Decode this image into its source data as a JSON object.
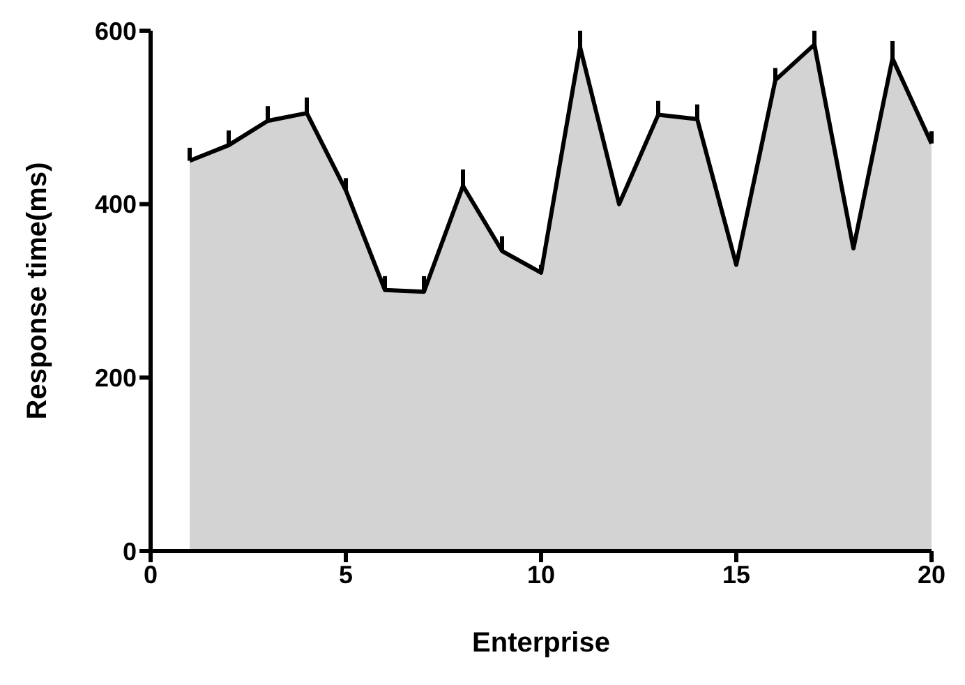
{
  "chart_data": {
    "type": "area",
    "xlabel": "Enterprise",
    "ylabel": "Response time(ms)",
    "x": [
      1,
      2,
      3,
      4,
      5,
      6,
      7,
      8,
      9,
      10,
      11,
      12,
      13,
      14,
      15,
      16,
      17,
      18,
      19,
      20
    ],
    "series": [
      {
        "color": "#d3d3d3",
        "values": [
          450,
          468,
          496,
          505,
          416,
          301,
          299,
          421,
          346,
          321,
          581,
          400,
          503,
          498,
          330,
          543,
          584,
          349,
          568,
          470
        ],
        "errors": [
          [
            450,
            465
          ],
          [
            468,
            485
          ],
          [
            496,
            513
          ],
          [
            505,
            523
          ],
          [
            416,
            430
          ],
          [
            301,
            317
          ],
          [
            299,
            317
          ],
          [
            421,
            440
          ],
          [
            346,
            363
          ],
          [
            321,
            330
          ],
          [
            581,
            600
          ],
          null,
          [
            503,
            519
          ],
          [
            498,
            515
          ],
          null,
          [
            543,
            557
          ],
          [
            584,
            600
          ],
          null,
          [
            568,
            588
          ],
          [
            470,
            484
          ]
        ]
      }
    ],
    "xlim": [
      0,
      20
    ],
    "xticks": [
      0,
      5,
      10,
      15,
      20
    ],
    "ylim": [
      0,
      600
    ],
    "yticks": [
      0,
      200,
      400,
      600
    ],
    "grid": false,
    "legend": false,
    "marker": "none",
    "line_style": "solid"
  }
}
